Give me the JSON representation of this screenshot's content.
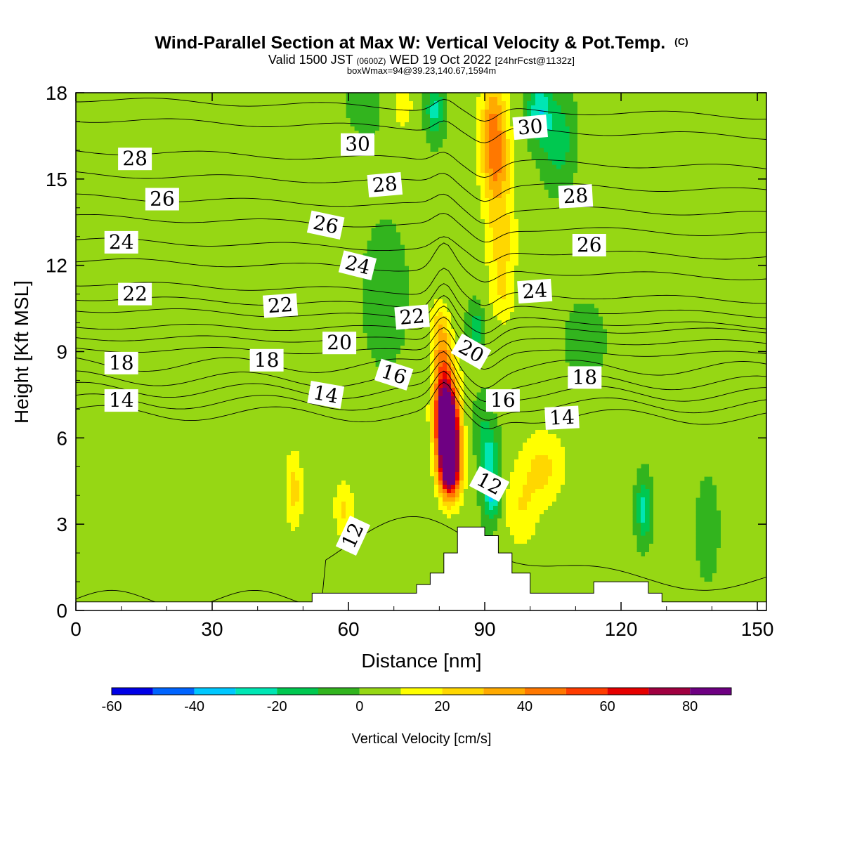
{
  "header": {
    "title": "Wind-Parallel Section at Max W: Vertical Velocity & Pot.Temp.",
    "copyright": "(C)",
    "valid_prefix": "Valid 1500 JST",
    "valid_zulu": "(0600Z)",
    "valid_date": "WED 19 Oct 2022",
    "forecast": "[24hrFcst@1132z]",
    "box_info": "boxWmax=94@39.23,140.67,1594m"
  },
  "chart_data": {
    "type": "heatmap",
    "xlabel": "Distance [nm]",
    "ylabel": "Height [Kft MSL]",
    "xlim": [
      0,
      152
    ],
    "ylim": [
      0,
      18
    ],
    "x_ticks": [
      0,
      30,
      60,
      90,
      120,
      150
    ],
    "y_ticks": [
      0,
      3,
      6,
      9,
      12,
      15,
      18
    ],
    "colorbar": {
      "label": "Vertical Velocity [cm/s]",
      "levels": [
        -60,
        -50,
        -40,
        -30,
        -20,
        -10,
        0,
        10,
        20,
        30,
        40,
        50,
        60,
        70,
        80,
        90
      ],
      "tick_labels": [
        -60,
        -40,
        -20,
        0,
        20,
        40,
        60,
        80
      ],
      "colors": [
        "#0000e6",
        "#0064ff",
        "#00c8ff",
        "#00e6b4",
        "#00c850",
        "#32b41e",
        "#96d714",
        "#ffff00",
        "#ffd700",
        "#ffaa00",
        "#ff7800",
        "#ff3c00",
        "#e60000",
        "#a00040",
        "#6e0082"
      ]
    },
    "background_w_color": "#32b41e",
    "w_features": [
      {
        "x": 82,
        "y": 5.8,
        "value": 94,
        "sx": 2.2,
        "sy": 1.3
      },
      {
        "x": 81.5,
        "y": 6.8,
        "value": 75,
        "sx": 2.6,
        "sy": 1.2
      },
      {
        "x": 82.5,
        "y": 4.8,
        "value": 62,
        "sx": 2.5,
        "sy": 1.0
      },
      {
        "x": 81,
        "y": 8.3,
        "value": 40,
        "sx": 2.2,
        "sy": 1.2
      },
      {
        "x": 80,
        "y": 9.8,
        "value": 22,
        "sx": 2.4,
        "sy": 1.0
      },
      {
        "x": 92,
        "y": 17.0,
        "value": 38,
        "sx": 3.0,
        "sy": 1.5
      },
      {
        "x": 92.5,
        "y": 15.2,
        "value": 30,
        "sx": 3.2,
        "sy": 1.3
      },
      {
        "x": 93.5,
        "y": 13.0,
        "value": 22,
        "sx": 3.5,
        "sy": 1.4
      },
      {
        "x": 94,
        "y": 11.0,
        "value": 16,
        "sx": 3.0,
        "sy": 1.2
      },
      {
        "x": 88,
        "y": 8.5,
        "value": 14,
        "sx": 2.5,
        "sy": 1.0
      },
      {
        "x": 103,
        "y": 5.0,
        "value": 20,
        "sx": 5.0,
        "sy": 1.3
      },
      {
        "x": 98,
        "y": 3.5,
        "value": 16,
        "sx": 4.0,
        "sy": 1.4
      },
      {
        "x": 48,
        "y": 4.2,
        "value": 22,
        "sx": 2.0,
        "sy": 1.4
      },
      {
        "x": 59,
        "y": 3.5,
        "value": 20,
        "sx": 2.2,
        "sy": 1.0
      },
      {
        "x": 72,
        "y": 17.6,
        "value": 18,
        "sx": 2.0,
        "sy": 0.8
      },
      {
        "x": 89,
        "y": 7.0,
        "value": -10,
        "sx": 2.0,
        "sy": 1.5
      },
      {
        "x": 91.5,
        "y": 4.0,
        "value": -32,
        "sx": 1.8,
        "sy": 0.9
      },
      {
        "x": 91,
        "y": 5.4,
        "value": -25,
        "sx": 1.8,
        "sy": 1.0
      },
      {
        "x": 88,
        "y": 9.6,
        "value": -22,
        "sx": 1.8,
        "sy": 0.9
      },
      {
        "x": 102,
        "y": 17.4,
        "value": -30,
        "sx": 2.5,
        "sy": 1.0
      },
      {
        "x": 106,
        "y": 16.4,
        "value": -20,
        "sx": 3.2,
        "sy": 1.4
      },
      {
        "x": 79,
        "y": 17.4,
        "value": -26,
        "sx": 1.8,
        "sy": 0.9
      },
      {
        "x": 125,
        "y": 3.5,
        "value": -26,
        "sx": 1.6,
        "sy": 1.0
      },
      {
        "x": 139,
        "y": 2.8,
        "value": -12,
        "sx": 2.0,
        "sy": 1.4
      },
      {
        "x": 63,
        "y": 17.4,
        "value": -14,
        "sx": 3.0,
        "sy": 1.0
      },
      {
        "x": 112,
        "y": 9.4,
        "value": -12,
        "sx": 3.5,
        "sy": 1.0
      },
      {
        "x": 68,
        "y": 11.0,
        "value": -11,
        "sx": 4.0,
        "sy": 2.0
      },
      {
        "x": 25,
        "y": 4.5,
        "value": 5,
        "sx": 2.0,
        "sy": 1.8
      },
      {
        "x": 38,
        "y": 4.0,
        "value": 5,
        "sx": 2.0,
        "sy": 1.8
      },
      {
        "x": 135,
        "y": 12.5,
        "value": 6,
        "sx": 6.0,
        "sy": 2.5
      },
      {
        "x": 146,
        "y": 17.0,
        "value": 6,
        "sx": 3.0,
        "sy": 1.2
      },
      {
        "x": 62,
        "y": 16.0,
        "value": 6,
        "sx": 3.0,
        "sy": 1.5
      },
      {
        "x": 10,
        "y": 4.0,
        "value": 4,
        "sx": 2.0,
        "sy": 1.5
      },
      {
        "x": 115,
        "y": 3.2,
        "value": 6,
        "sx": 3.0,
        "sy": 1.2
      }
    ],
    "terrain": [
      [
        0,
        0.3
      ],
      [
        52,
        0.3
      ],
      [
        52,
        0.6
      ],
      [
        75,
        0.6
      ],
      [
        75,
        0.9
      ],
      [
        78,
        0.9
      ],
      [
        78,
        1.3
      ],
      [
        81,
        1.3
      ],
      [
        81,
        2.0
      ],
      [
        84,
        2.0
      ],
      [
        84,
        2.9
      ],
      [
        90,
        2.9
      ],
      [
        90,
        2.6
      ],
      [
        93,
        2.6
      ],
      [
        93,
        2.0
      ],
      [
        96,
        2.0
      ],
      [
        96,
        1.3
      ],
      [
        100,
        1.3
      ],
      [
        100,
        0.6
      ],
      [
        114,
        0.6
      ],
      [
        114,
        1.0
      ],
      [
        126,
        1.0
      ],
      [
        126,
        0.6
      ],
      [
        129,
        0.6
      ],
      [
        129,
        0.3
      ],
      [
        152,
        0.3
      ],
      [
        152,
        0
      ],
      [
        0,
        0
      ]
    ],
    "theta_levels": [
      12,
      13,
      14,
      15,
      16,
      17,
      18,
      19,
      20,
      21,
      22,
      23,
      24,
      25,
      26,
      27,
      28,
      29,
      30,
      31
    ],
    "theta_base_heights": [
      2.9,
      6.8,
      7.2,
      7.6,
      8.0,
      8.5,
      9.0,
      9.4,
      9.8,
      10.2,
      10.6,
      11.1,
      11.9,
      12.6,
      13.4,
      14.1,
      14.9,
      15.7,
      16.8,
      17.5
    ],
    "theta_labels": [
      {
        "text": "28",
        "x": 13,
        "y": 15.7,
        "angle": 0
      },
      {
        "text": "26",
        "x": 19,
        "y": 14.3,
        "angle": 0
      },
      {
        "text": "24",
        "x": 10,
        "y": 12.8,
        "angle": 0
      },
      {
        "text": "22",
        "x": 13,
        "y": 11.0,
        "angle": 0
      },
      {
        "text": "18",
        "x": 10,
        "y": 8.6,
        "angle": 0
      },
      {
        "text": "14",
        "x": 10,
        "y": 7.3,
        "angle": 0
      },
      {
        "text": "30",
        "x": 62,
        "y": 16.2,
        "angle": 0
      },
      {
        "text": "28",
        "x": 68,
        "y": 14.8,
        "angle": -5
      },
      {
        "text": "26",
        "x": 55,
        "y": 13.4,
        "angle": 12
      },
      {
        "text": "24",
        "x": 62,
        "y": 12.0,
        "angle": 14
      },
      {
        "text": "22",
        "x": 45,
        "y": 10.6,
        "angle": -4
      },
      {
        "text": "22",
        "x": 74,
        "y": 10.2,
        "angle": -5
      },
      {
        "text": "20",
        "x": 58,
        "y": 9.3,
        "angle": 0
      },
      {
        "text": "18",
        "x": 42,
        "y": 8.7,
        "angle": 0
      },
      {
        "text": "16",
        "x": 70,
        "y": 8.2,
        "angle": 18
      },
      {
        "text": "14",
        "x": 55,
        "y": 7.5,
        "angle": 10
      },
      {
        "text": "20",
        "x": 87,
        "y": 9.0,
        "angle": 30
      },
      {
        "text": "30",
        "x": 100,
        "y": 16.8,
        "angle": -5
      },
      {
        "text": "28",
        "x": 110,
        "y": 14.4,
        "angle": -3
      },
      {
        "text": "26",
        "x": 113,
        "y": 12.7,
        "angle": 0
      },
      {
        "text": "24",
        "x": 101,
        "y": 11.1,
        "angle": -4
      },
      {
        "text": "18",
        "x": 112,
        "y": 8.1,
        "angle": 0
      },
      {
        "text": "16",
        "x": 94,
        "y": 7.3,
        "angle": 0
      },
      {
        "text": "14",
        "x": 107,
        "y": 6.7,
        "angle": -3
      },
      {
        "text": "12",
        "x": 91,
        "y": 4.4,
        "angle": 28
      },
      {
        "text": "12",
        "x": 61,
        "y": 2.6,
        "angle": -65
      }
    ]
  }
}
